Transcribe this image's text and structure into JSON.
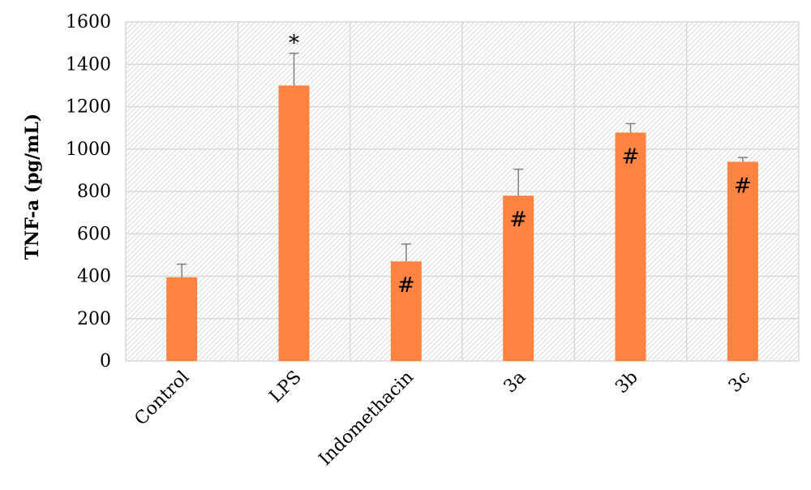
{
  "chart_data": {
    "type": "bar",
    "title": "",
    "xlabel": "",
    "ylabel": "TNF-a (pg/mL)",
    "ylim": [
      0,
      1600
    ],
    "ytick_step": 200,
    "grid": true,
    "categories": [
      "Control",
      "LPS",
      "Indomethacin",
      "3a",
      "3b",
      "3c"
    ],
    "series": [
      {
        "values": [
          395,
          1300,
          470,
          780,
          1078,
          940
        ],
        "errors": [
          62,
          152,
          82,
          125,
          42,
          20
        ],
        "annotations": [
          "",
          "*",
          "#",
          "#",
          "#",
          "#"
        ]
      }
    ],
    "colors": {
      "bar": "#FF8442",
      "error_bar": "#7F7F7F",
      "grid": "#D9D9D9",
      "hatch": "#D5DCD5",
      "axis": "#D9D9D9"
    }
  }
}
